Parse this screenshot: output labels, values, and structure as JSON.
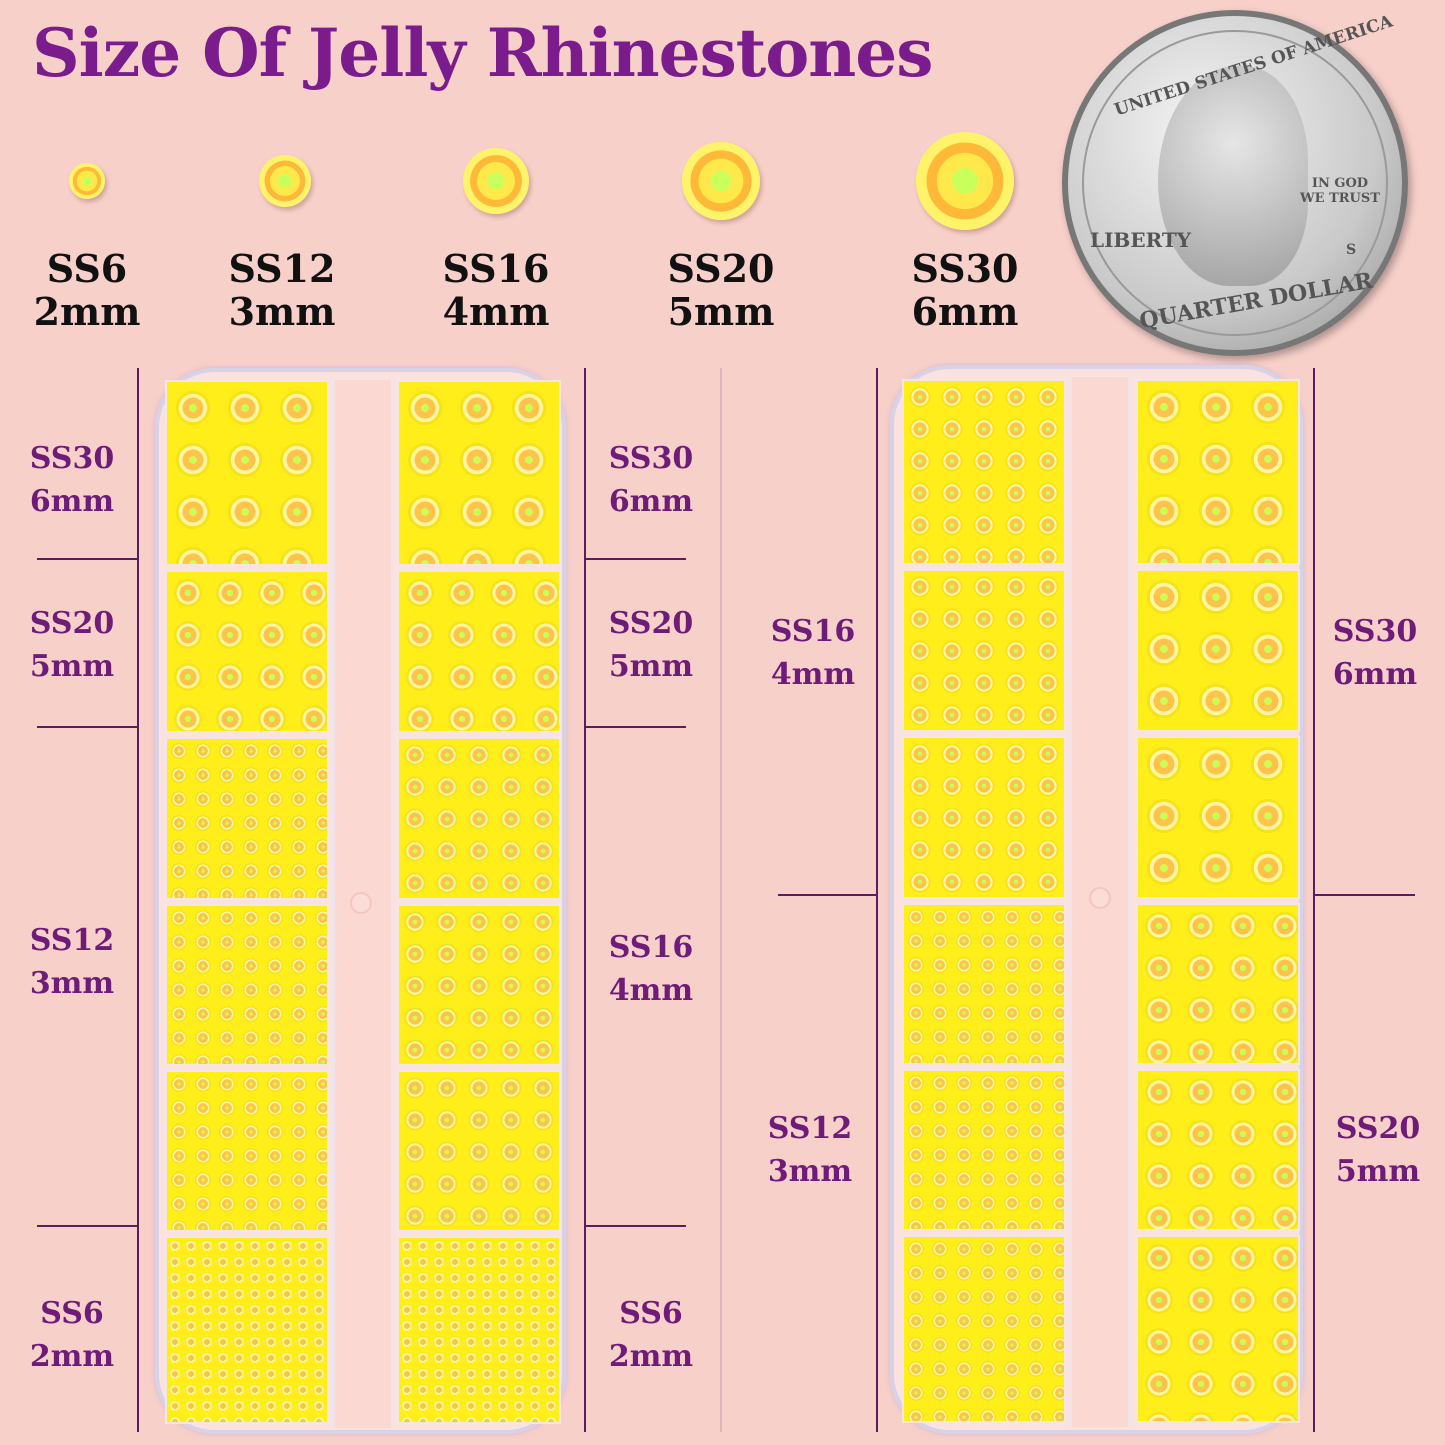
{
  "title": "Size Of Jelly Rhinestones",
  "colors": {
    "background": "#f8d0ca",
    "title": "#7b1c8c",
    "label": "#6e1c78",
    "stone": "#ffee1a"
  },
  "size_chart": [
    {
      "code": "SS6",
      "mm": "2mm"
    },
    {
      "code": "SS12",
      "mm": "3mm"
    },
    {
      "code": "SS16",
      "mm": "4mm"
    },
    {
      "code": "SS20",
      "mm": "5mm"
    },
    {
      "code": "SS30",
      "mm": "6mm"
    }
  ],
  "coin": {
    "top": "UNITED STATES OF AMERICA",
    "motto": "IN GOD WE TRUST",
    "liberty": "LIBERTY",
    "bottom": "QUARTER DOLLAR",
    "mint": "S"
  },
  "box1": {
    "left_labels": [
      {
        "code": "SS30",
        "mm": "6mm"
      },
      {
        "code": "SS20",
        "mm": "5mm"
      },
      {
        "code": "SS12",
        "mm": "3mm"
      },
      {
        "code": "SS6",
        "mm": "2mm"
      }
    ],
    "right_labels": [
      {
        "code": "SS30",
        "mm": "6mm"
      },
      {
        "code": "SS20",
        "mm": "5mm"
      },
      {
        "code": "SS16",
        "mm": "4mm"
      },
      {
        "code": "SS6",
        "mm": "2mm"
      }
    ]
  },
  "box2": {
    "left_labels": [
      {
        "code": "SS16",
        "mm": "4mm"
      },
      {
        "code": "SS12",
        "mm": "3mm"
      }
    ],
    "right_labels": [
      {
        "code": "SS30",
        "mm": "6mm"
      },
      {
        "code": "SS20",
        "mm": "5mm"
      }
    ]
  }
}
